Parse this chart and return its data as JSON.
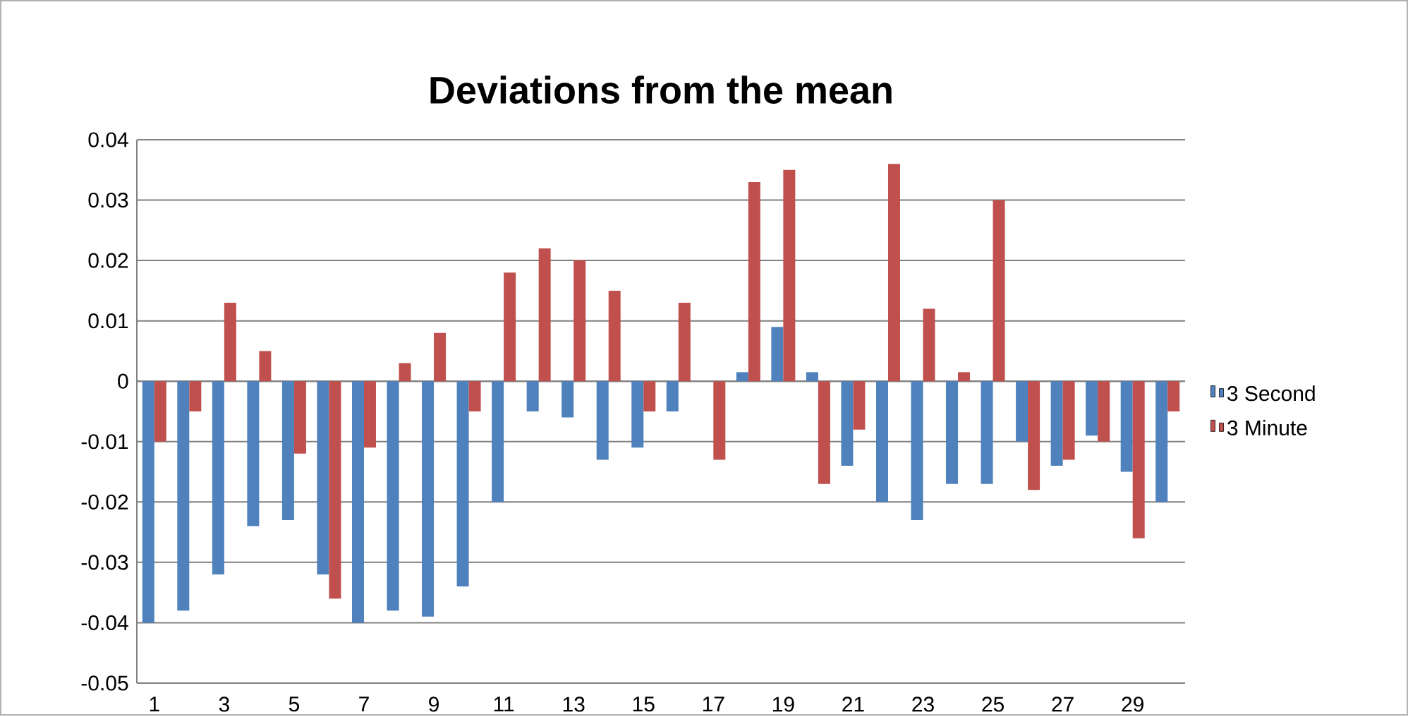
{
  "chart_data": {
    "type": "bar",
    "title": "Deviations from the mean",
    "categories": [
      "1",
      null,
      "3",
      null,
      "5",
      null,
      "7",
      null,
      "9",
      null,
      "11",
      null,
      "13",
      null,
      "15",
      null,
      "17",
      null,
      "19",
      null,
      "21",
      null,
      "23",
      null,
      "25",
      null,
      "27",
      null,
      "29",
      null
    ],
    "series": [
      {
        "name": "3 Second",
        "color": "#4f81bd",
        "values": [
          -0.04,
          -0.038,
          -0.032,
          -0.024,
          -0.023,
          -0.032,
          -0.04,
          -0.038,
          -0.039,
          -0.034,
          -0.02,
          -0.005,
          -0.006,
          -0.013,
          -0.011,
          -0.005,
          0,
          0.0015,
          0.009,
          0.0015,
          -0.014,
          -0.02,
          -0.023,
          -0.017,
          -0.017,
          -0.01,
          -0.014,
          -0.009,
          -0.015,
          -0.02
        ]
      },
      {
        "name": "3 Minute",
        "color": "#c0504d",
        "values": [
          -0.01,
          -0.005,
          0.013,
          0.005,
          -0.012,
          -0.036,
          -0.011,
          0.003,
          0.008,
          -0.005,
          0.018,
          0.022,
          0.02,
          0.015,
          -0.005,
          0.013,
          -0.013,
          0.033,
          0.035,
          -0.017,
          -0.008,
          0.036,
          0.012,
          0.0015,
          0.03,
          -0.018,
          -0.013,
          -0.01,
          -0.026,
          -0.005
        ]
      }
    ],
    "ylim": [
      -0.05,
      0.04
    ],
    "yticks": [
      -0.05,
      -0.04,
      -0.03,
      -0.02,
      -0.01,
      0,
      0.01,
      0.02,
      0.03,
      0.04
    ],
    "grid": "y",
    "legend": "right"
  }
}
